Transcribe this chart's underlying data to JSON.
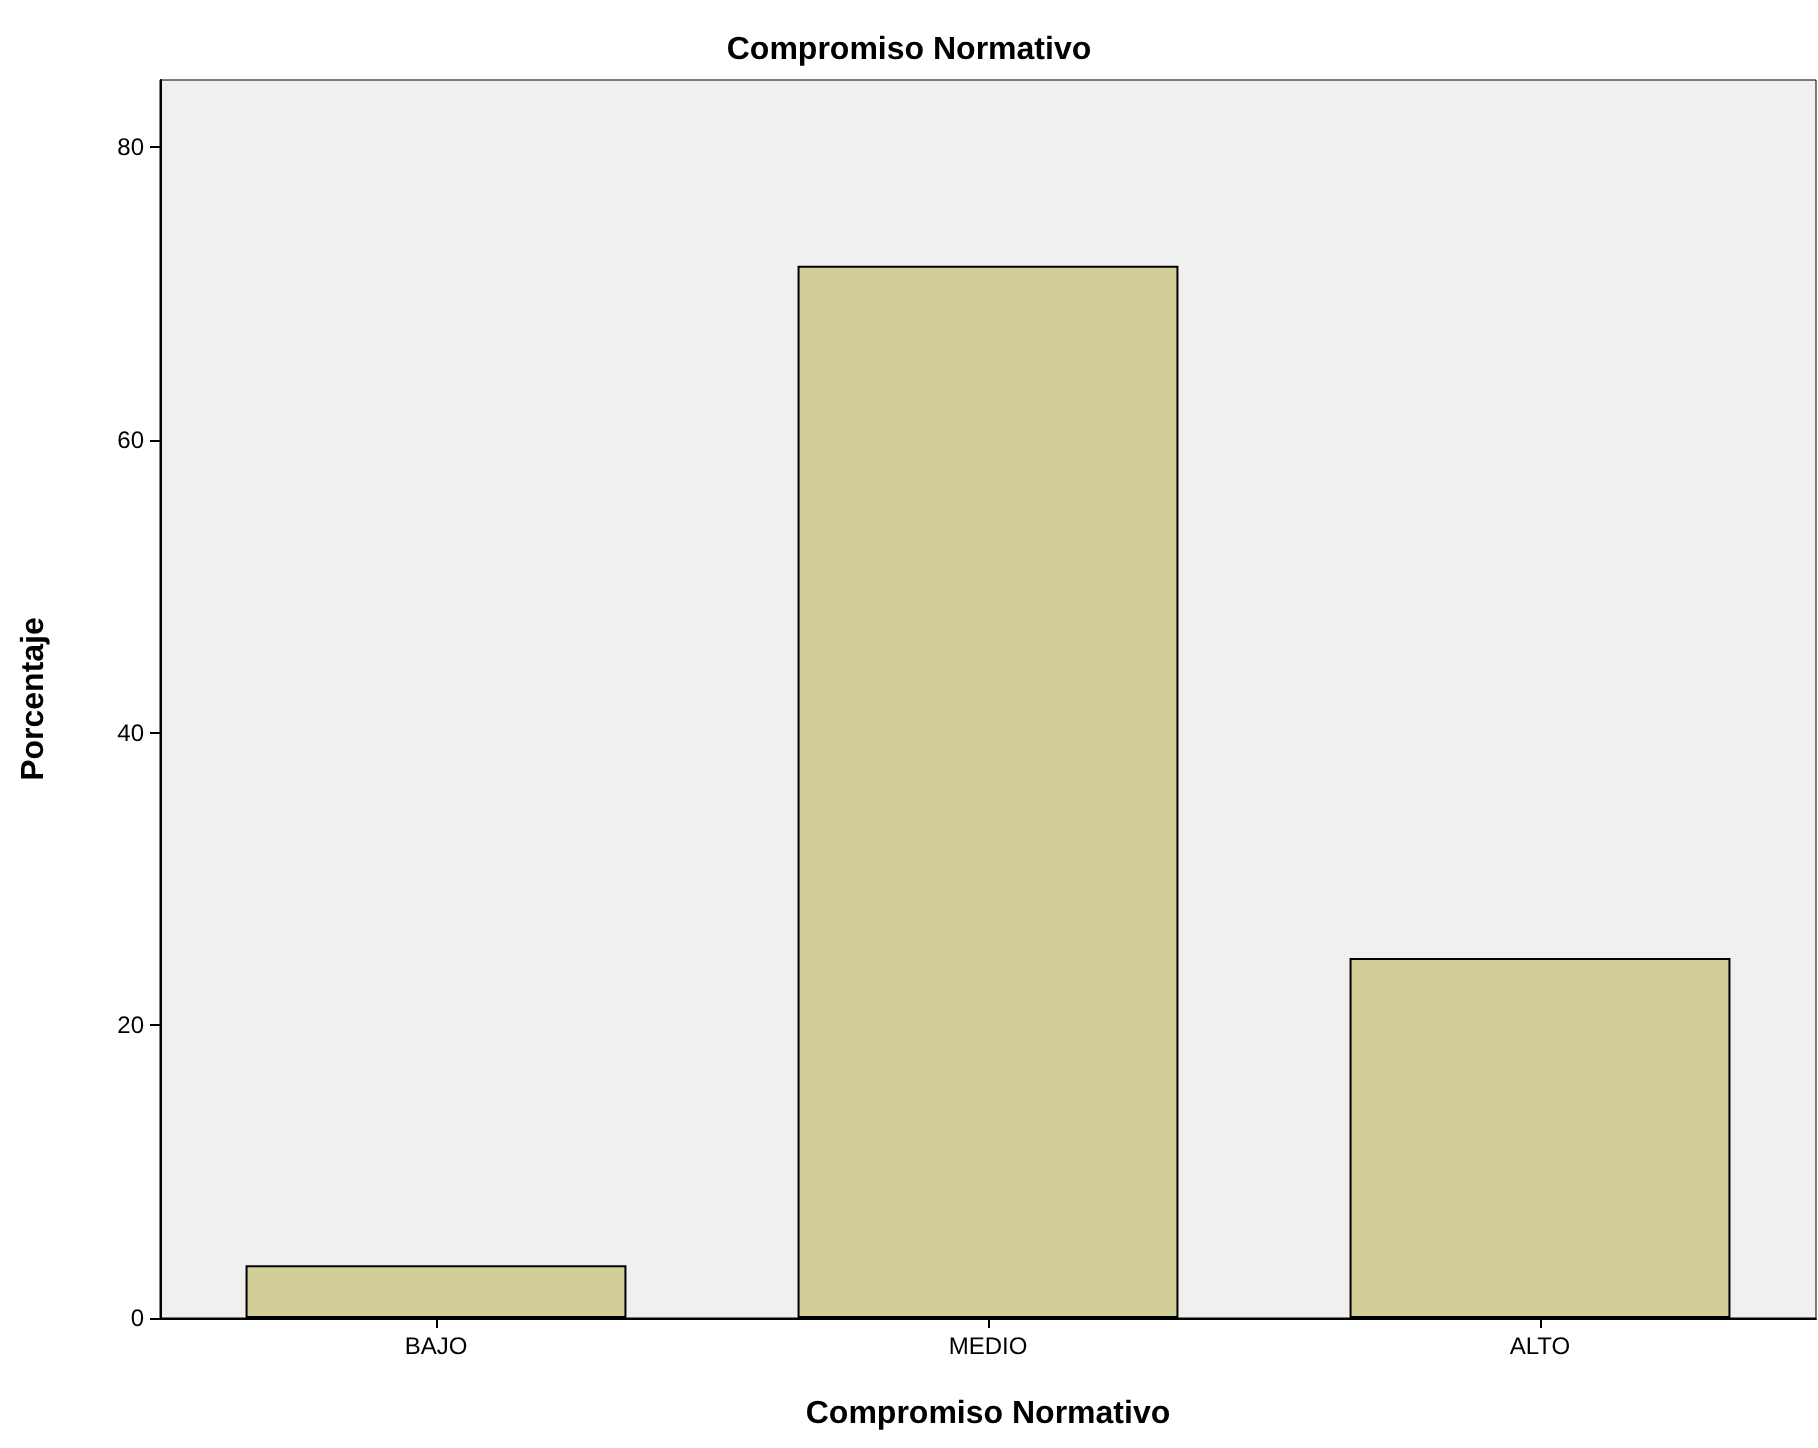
{
  "chart_data": {
    "type": "bar",
    "title": "Compromiso Normativo",
    "xlabel": "Compromiso Normativo",
    "ylabel": "Porcentaje",
    "categories": [
      "BAJO",
      "MEDIO",
      "ALTO"
    ],
    "values": [
      3.6,
      71.9,
      24.6
    ],
    "color": "#d3ce97",
    "ylim": [
      0,
      84.6
    ],
    "yticks": [
      0,
      20,
      40,
      60,
      80
    ],
    "grid": false
  }
}
